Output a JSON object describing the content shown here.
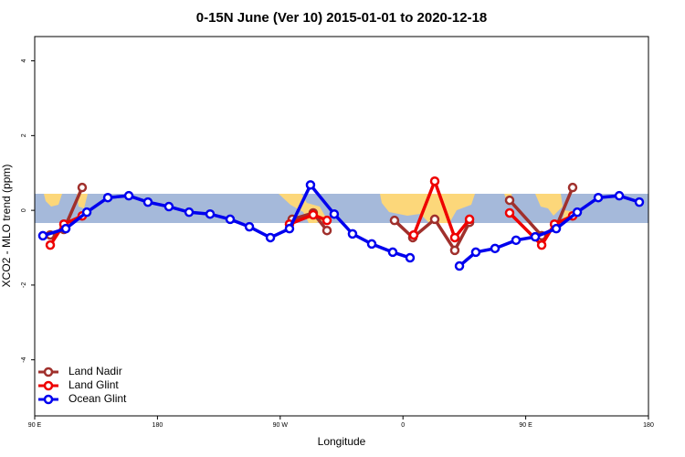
{
  "chart_data": {
    "type": "line",
    "title": "0-15N June (Ver 10)   2015-01-01 to 2020-12-18",
    "x_label": "Longitude",
    "y_label": "XCO2 - MLO trend (ppm)",
    "xlim": [
      90,
      540
    ],
    "ylim": [
      -5.5,
      4.65
    ],
    "xticks": [
      {
        "value": 90,
        "label": "90 E"
      },
      {
        "value": 180,
        "label": "180"
      },
      {
        "value": 270,
        "label": "90 W"
      },
      {
        "value": 360,
        "label": "0"
      },
      {
        "value": 450,
        "label": "90 E"
      },
      {
        "value": 540,
        "label": "180"
      }
    ],
    "yticks": [
      -4,
      -2,
      0,
      2,
      4
    ],
    "legend": "bottom-left",
    "series": [
      {
        "name": "Land Nadir",
        "color": "#a0302c",
        "x": [
          101.4,
          111.4,
          124.8,
          null,
          278.8,
          294.2,
          304.3,
          null,
          353.8,
          367.2,
          383.3,
          398,
          408.8,
          null,
          438.2,
          461.7,
          472.4,
          484.4
        ],
        "values": [
          -0.66,
          -0.51,
          0.61,
          null,
          -0.24,
          -0.07,
          -0.54,
          null,
          -0.27,
          -0.73,
          -0.24,
          -1.07,
          -0.32,
          null,
          0.27,
          -0.68,
          -0.44,
          0.61
        ]
      },
      {
        "name": "Land Glint",
        "color": "#ee0000",
        "x": [
          101.4,
          111.4,
          124.8,
          null,
          276.8,
          294.2,
          304.3,
          null,
          367.9,
          383.3,
          398,
          408.8,
          null,
          438.2,
          461.7,
          471.1,
          484.4
        ],
        "values": [
          -0.93,
          -0.37,
          -0.15,
          null,
          -0.37,
          -0.12,
          -0.27,
          null,
          -0.66,
          0.78,
          -0.73,
          -0.24,
          null,
          -0.07,
          -0.93,
          -0.37,
          -0.15
        ]
      },
      {
        "name": "Ocean Glint",
        "color": "#0000ee",
        "x": [
          96,
          112.8,
          128.2,
          143.6,
          159,
          173,
          188.4,
          203.2,
          218.6,
          233.3,
          247.4,
          262.8,
          276.8,
          292.2,
          309.6,
          323,
          337.1,
          352.5,
          365.2,
          null,
          401.4,
          413.4,
          427.5,
          442.9,
          457,
          472.4,
          487.8,
          503.2,
          518.6,
          533.3
        ],
        "values": [
          -0.68,
          -0.49,
          -0.05,
          0.34,
          0.39,
          0.22,
          0.1,
          -0.05,
          -0.1,
          -0.24,
          -0.44,
          -0.73,
          -0.49,
          0.68,
          -0.1,
          -0.63,
          -0.9,
          -1.12,
          -1.27,
          null,
          -1.49,
          -1.12,
          -1.02,
          -0.8,
          -0.71,
          -0.49,
          -0.05,
          0.34,
          0.39,
          0.22
        ]
      }
    ]
  }
}
